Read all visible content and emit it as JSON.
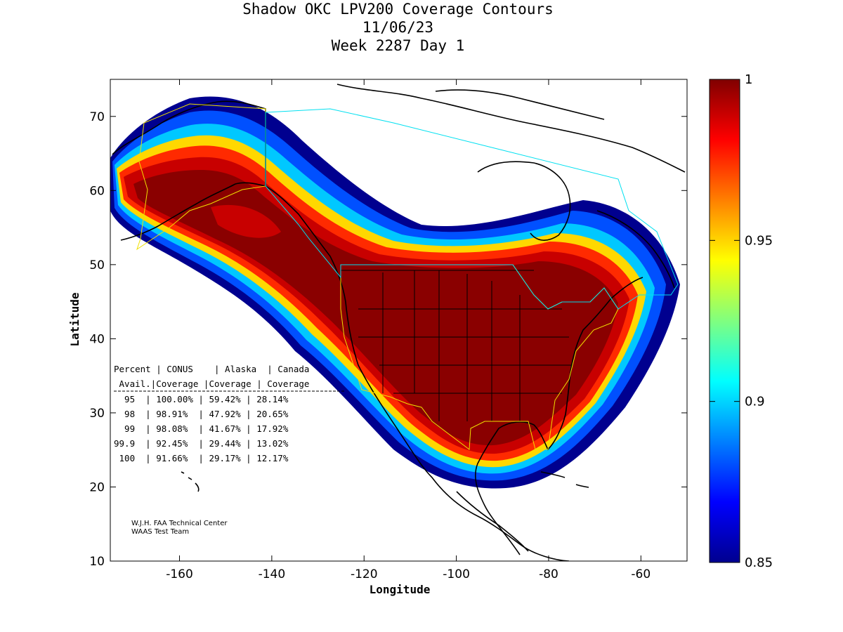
{
  "title": {
    "line1": "Shadow OKC LPV200 Coverage Contours",
    "line2": "11/06/23",
    "line3": "Week 2287 Day 1"
  },
  "axes": {
    "xlabel": "Longitude",
    "ylabel": "Latitude",
    "xlim": [
      -175,
      -50
    ],
    "ylim": [
      10,
      75
    ],
    "xticks": [
      -160,
      -140,
      -120,
      -100,
      -80,
      -60
    ],
    "yticks": [
      10,
      20,
      30,
      40,
      50,
      60,
      70
    ],
    "xtick_labels": [
      "-160",
      "-140",
      "-120",
      "-100",
      "-80",
      "-60"
    ],
    "ytick_labels": [
      "10",
      "20",
      "30",
      "40",
      "50",
      "60",
      "70"
    ]
  },
  "colorbar": {
    "min": 0.85,
    "max": 1,
    "ticks": [
      0.85,
      0.9,
      0.95,
      1
    ],
    "tick_labels": [
      "0.85",
      "0.9",
      "0.95",
      "1"
    ],
    "colormap": "jet"
  },
  "stats_table": {
    "header1": [
      "Percent",
      "CONUS",
      "Alaska",
      "Canada"
    ],
    "header2": [
      "Avail.",
      "Coverage",
      "Coverage",
      "Coverage"
    ],
    "rows": [
      [
        "95",
        "100.00%",
        "59.42%",
        "28.14%"
      ],
      [
        "98",
        "98.91%",
        "47.92%",
        "20.65%"
      ],
      [
        "99",
        "98.08%",
        "41.67%",
        "17.92%"
      ],
      [
        "99.9",
        "92.45%",
        "29.44%",
        "13.02%"
      ],
      [
        "100",
        "91.66%",
        "29.17%",
        "12.17%"
      ]
    ]
  },
  "credits": {
    "line1": "W.J.H. FAA Technical Center",
    "line2": "WAAS Test Team"
  },
  "chart_data": {
    "type": "heatmap",
    "title": "Shadow OKC LPV200 Coverage Contours",
    "xlabel": "Longitude",
    "ylabel": "Latitude",
    "xlim": [
      -175,
      -50
    ],
    "ylim": [
      10,
      75
    ],
    "color_range": [
      0.85,
      1
    ],
    "coverage_band": {
      "upper_edge": [
        [
          -175,
          63
        ],
        [
          -172,
          66
        ],
        [
          -167,
          69.5
        ],
        [
          -160,
          71.5
        ],
        [
          -152,
          72
        ],
        [
          -145,
          71
        ],
        [
          -141,
          70
        ],
        [
          -136,
          66.5
        ],
        [
          -130,
          63
        ],
        [
          -124,
          59.5
        ],
        [
          -116,
          56.5
        ],
        [
          -105,
          55
        ],
        [
          -95,
          54.5
        ],
        [
          -85,
          55.5
        ],
        [
          -75,
          57
        ],
        [
          -68,
          56
        ],
        [
          -60,
          53
        ],
        [
          -56,
          49
        ],
        [
          -57,
          46
        ]
      ],
      "lower_edge": [
        [
          -57,
          46
        ],
        [
          -60,
          41
        ],
        [
          -63,
          38
        ],
        [
          -68,
          33
        ],
        [
          -74,
          28.5
        ],
        [
          -79,
          24.5
        ],
        [
          -85,
          21.5
        ],
        [
          -92,
          20.5
        ],
        [
          -100,
          21.5
        ],
        [
          -106,
          23
        ],
        [
          -112,
          26.5
        ],
        [
          -116,
          30
        ],
        [
          -119,
          34
        ],
        [
          -122,
          38
        ],
        [
          -126,
          42.5
        ],
        [
          -132,
          46
        ],
        [
          -140,
          48.5
        ],
        [
          -150,
          50
        ],
        [
          -162,
          52
        ],
        [
          -171,
          56.5
        ],
        [
          -175,
          60
        ]
      ]
    }
  }
}
